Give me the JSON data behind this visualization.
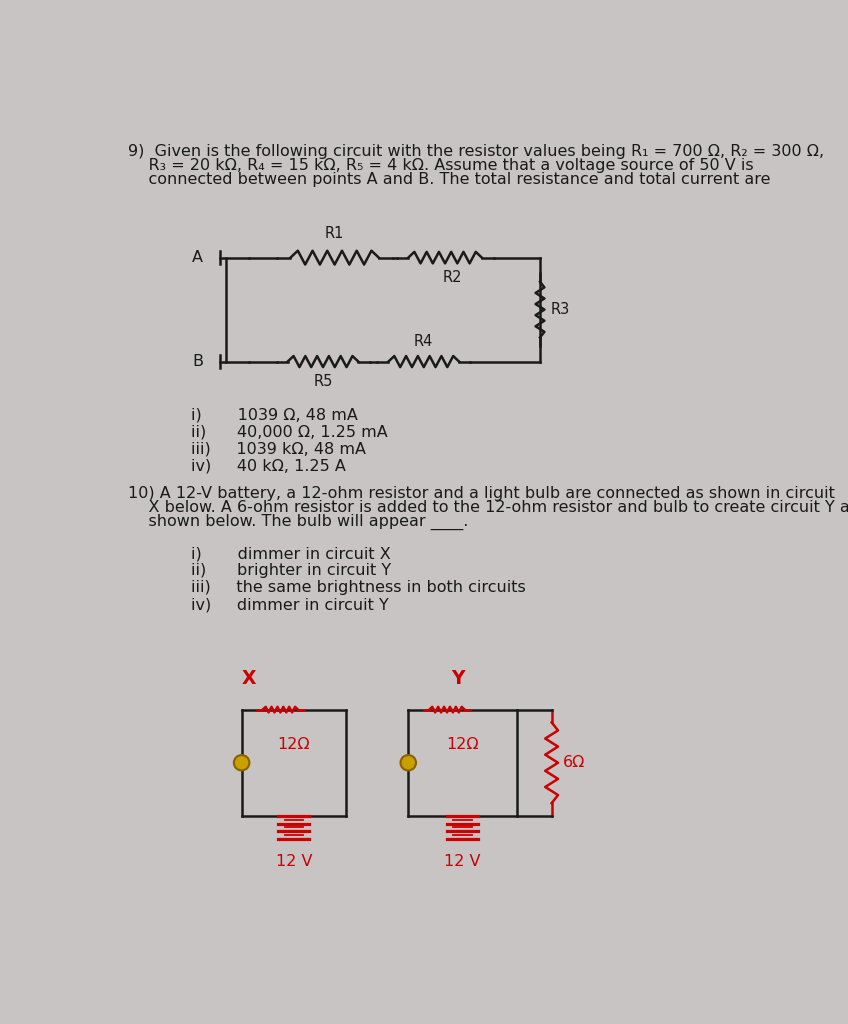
{
  "bg_color": "#c8c4c4",
  "text_color": "#1a1a1a",
  "red_color": "#cc0000",
  "q9_line1": "9)  Given is the following circuit with the resistor values being R₁ = 700 Ω, R₂ = 300 Ω,",
  "q9_line2": "    R₃ = 20 kΩ, R₄ = 15 kΩ, R₅ = 4 kΩ. Assume that a voltage source of 50 V is",
  "q9_line3": "    connected between points A and B. The total resistance and total current are",
  "q9_options": [
    "i)       1039 Ω, 48 mA",
    "ii)      40,000 Ω, 1.25 mA",
    "iii)     1039 kΩ, 48 mA",
    "iv)     40 kΩ, 1.25 A"
  ],
  "q10_line1": "10) A 12-V battery, a 12-ohm resistor and a light bulb are connected as shown in circuit",
  "q10_line2": "    X below. A 6-ohm resistor is added to the 12-ohm resistor and bulb to create circuit Y as",
  "q10_line3": "    shown below. The bulb will appear ____.",
  "q10_options": [
    "i)       dimmer in circuit X",
    "ii)      brighter in circuit Y",
    "iii)     the same brightness in both circuits",
    "iv)     dimmer in circuit Y"
  ]
}
